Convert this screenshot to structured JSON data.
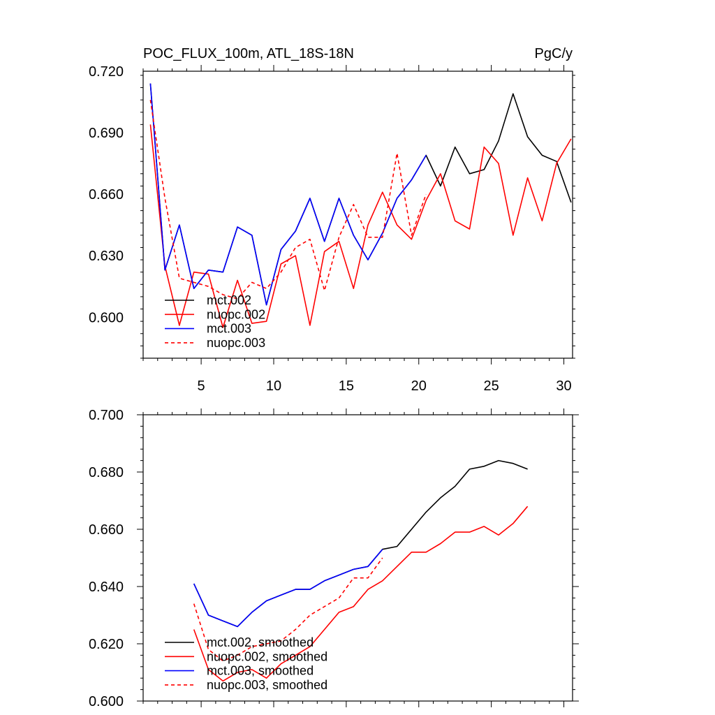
{
  "chart_data": [
    {
      "type": "line",
      "title": "POC_FLUX_100m, ATL_18S-18N",
      "units": "PgC/y",
      "xlabel": "",
      "ylabel": "",
      "xlim": [
        1,
        30.6
      ],
      "ylim": [
        0.58,
        0.72
      ],
      "xticks": [
        5,
        10,
        15,
        20,
        25,
        30
      ],
      "yticks": [
        0.6,
        0.63,
        0.66,
        0.69,
        0.72
      ],
      "ytick_labels": [
        "0.600",
        "0.630",
        "0.660",
        "0.690",
        "0.720"
      ],
      "legend": {
        "position": "bottom-left"
      },
      "series": [
        {
          "name": "mct.002",
          "color": "#000000",
          "dash": "solid",
          "x": [
            1.5,
            2.5,
            3.5,
            4.5,
            5.5,
            6.5,
            7.5,
            8.5,
            9.5,
            10.5,
            11.5,
            12.5,
            13.5,
            14.5,
            15.5,
            16.5,
            17.5,
            18.5,
            19.5,
            20.5,
            21.5,
            22.5,
            23.5,
            24.5,
            25.5,
            26.5,
            27.5,
            28.5,
            29.5,
            30.5
          ],
          "values": [
            0.714,
            0.623,
            0.645,
            0.614,
            0.623,
            0.622,
            0.644,
            0.64,
            0.606,
            0.633,
            0.642,
            0.658,
            0.637,
            0.658,
            0.64,
            0.628,
            0.641,
            0.658,
            0.667,
            0.679,
            0.664,
            0.683,
            0.67,
            0.672,
            0.686,
            0.709,
            0.688,
            0.679,
            0.676,
            0.656
          ]
        },
        {
          "name": "nuopc.002",
          "color": "#ff0000",
          "dash": "solid",
          "x": [
            1.5,
            2.5,
            3.5,
            4.5,
            5.5,
            6.5,
            7.5,
            8.5,
            9.5,
            10.5,
            11.5,
            12.5,
            13.5,
            14.5,
            15.5,
            16.5,
            17.5,
            18.5,
            19.5,
            20.5,
            21.5,
            22.5,
            23.5,
            24.5,
            25.5,
            26.5,
            27.5,
            28.5,
            29.5,
            30.5
          ],
          "values": [
            0.694,
            0.625,
            0.596,
            0.622,
            0.621,
            0.595,
            0.618,
            0.597,
            0.598,
            0.626,
            0.63,
            0.596,
            0.632,
            0.637,
            0.614,
            0.645,
            0.661,
            0.645,
            0.638,
            0.657,
            0.67,
            0.647,
            0.643,
            0.683,
            0.675,
            0.64,
            0.668,
            0.647,
            0.675,
            0.687
          ]
        },
        {
          "name": "mct.003",
          "color": "#0000ff",
          "dash": "solid",
          "x": [
            1.5,
            2.5,
            3.5,
            4.5,
            5.5,
            6.5,
            7.5,
            8.5,
            9.5,
            10.5,
            11.5,
            12.5,
            13.5,
            14.5,
            15.5,
            16.5,
            17.5,
            18.5,
            19.5,
            20.5
          ],
          "values": [
            0.714,
            0.623,
            0.645,
            0.614,
            0.623,
            0.622,
            0.644,
            0.64,
            0.606,
            0.633,
            0.642,
            0.658,
            0.637,
            0.658,
            0.64,
            0.628,
            0.641,
            0.658,
            0.667,
            0.679
          ]
        },
        {
          "name": "nuopc.003",
          "color": "#ff0000",
          "dash": "dashed",
          "x": [
            1.5,
            2.5,
            3.5,
            4.5,
            5.5,
            6.5,
            7.5,
            8.5,
            9.5,
            10.5,
            11.5,
            12.5,
            13.5,
            14.5,
            15.5,
            16.5,
            17.5,
            18.5,
            19.5,
            20.5
          ],
          "values": [
            0.706,
            0.658,
            0.619,
            0.617,
            0.615,
            0.611,
            0.609,
            0.617,
            0.614,
            0.622,
            0.634,
            0.638,
            0.613,
            0.639,
            0.655,
            0.639,
            0.639,
            0.68,
            0.64,
            0.66
          ]
        }
      ]
    },
    {
      "type": "line",
      "title": "",
      "xlabel": "",
      "ylabel": "",
      "xlim": [
        1,
        30.6
      ],
      "ylim": [
        0.6,
        0.7
      ],
      "xticks": [
        5,
        10,
        15,
        20,
        25,
        30
      ],
      "yticks": [
        0.6,
        0.62,
        0.64,
        0.66,
        0.68,
        0.7
      ],
      "ytick_labels": [
        "0.600",
        "0.620",
        "0.640",
        "0.660",
        "0.680",
        "0.700"
      ],
      "legend": {
        "position": "bottom-left"
      },
      "series": [
        {
          "name": "mct.002, smoothed",
          "color": "#000000",
          "dash": "solid",
          "x": [
            4.5,
            5.5,
            6.5,
            7.5,
            8.5,
            9.5,
            10.5,
            11.5,
            12.5,
            13.5,
            14.5,
            15.5,
            16.5,
            17.5,
            18.5,
            19.5,
            20.5,
            21.5,
            22.5,
            23.5,
            24.5,
            25.5,
            26.5,
            27.5
          ],
          "values": [
            0.641,
            0.63,
            0.628,
            0.626,
            0.631,
            0.635,
            0.637,
            0.639,
            0.639,
            0.642,
            0.644,
            0.646,
            0.647,
            0.653,
            0.654,
            0.66,
            0.666,
            0.671,
            0.675,
            0.681,
            0.682,
            0.684,
            0.683,
            0.681
          ]
        },
        {
          "name": "nuopc.002, smoothed",
          "color": "#ff0000",
          "dash": "solid",
          "x": [
            4.5,
            5.5,
            6.5,
            7.5,
            8.5,
            9.5,
            10.5,
            11.5,
            12.5,
            13.5,
            14.5,
            15.5,
            16.5,
            17.5,
            18.5,
            19.5,
            20.5,
            21.5,
            22.5,
            23.5,
            24.5,
            25.5,
            26.5,
            27.5
          ],
          "values": [
            0.625,
            0.611,
            0.607,
            0.61,
            0.611,
            0.608,
            0.613,
            0.616,
            0.619,
            0.625,
            0.631,
            0.633,
            0.639,
            0.642,
            0.647,
            0.652,
            0.652,
            0.655,
            0.659,
            0.659,
            0.661,
            0.658,
            0.662,
            0.668
          ]
        },
        {
          "name": "mct.003, smoothed",
          "color": "#0000ff",
          "dash": "solid",
          "x": [
            4.5,
            5.5,
            6.5,
            7.5,
            8.5,
            9.5,
            10.5,
            11.5,
            12.5,
            13.5,
            14.5,
            15.5,
            16.5,
            17.5
          ],
          "values": [
            0.641,
            0.63,
            0.628,
            0.626,
            0.631,
            0.635,
            0.637,
            0.639,
            0.639,
            0.642,
            0.644,
            0.646,
            0.647,
            0.653
          ]
        },
        {
          "name": "nuopc.003, smoothed",
          "color": "#ff0000",
          "dash": "dashed",
          "x": [
            4.5,
            5.5,
            6.5,
            7.5,
            8.5,
            9.5,
            10.5,
            11.5,
            12.5,
            13.5,
            14.5,
            15.5,
            16.5,
            17.5
          ],
          "values": [
            0.634,
            0.618,
            0.614,
            0.616,
            0.619,
            0.62,
            0.621,
            0.625,
            0.63,
            0.633,
            0.636,
            0.643,
            0.643,
            0.65
          ]
        }
      ]
    }
  ]
}
